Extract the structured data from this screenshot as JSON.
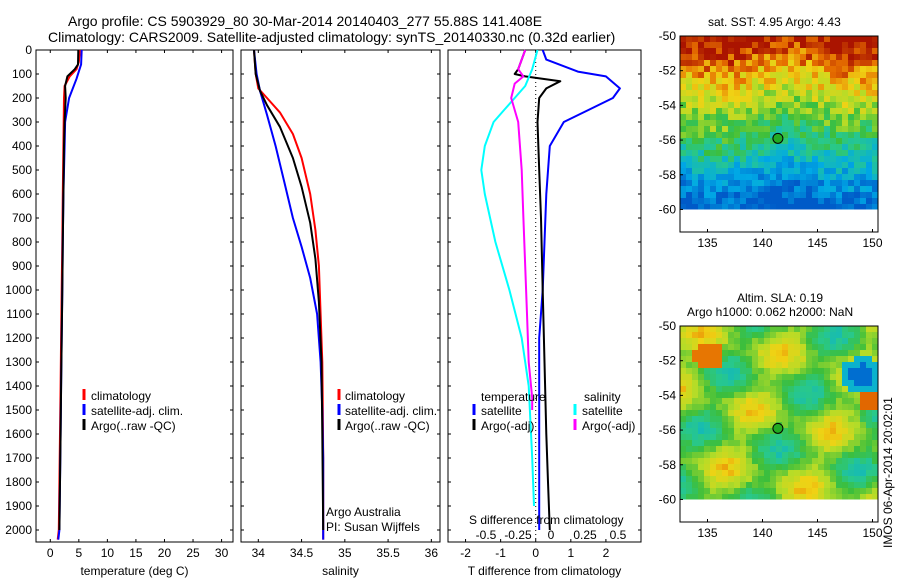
{
  "header": {
    "line1": "Argo profile: CS 5903929_80 30-Mar-2014 20140403_277 55.88S 141.408E",
    "line2": "Climatology: CARS2009. Satellite-adjusted climatology: synTS_20140330.nc (0.32d earlier)"
  },
  "colors": {
    "climatology": "#ff0000",
    "satellite": "#0000ff",
    "argo": "#000000",
    "cyan": "#00ffff",
    "magenta": "#ff00ff"
  },
  "chart_data": [
    {
      "type": "line",
      "id": "temperature",
      "xlabel": "temperature (deg C)",
      "ylabel": "",
      "xlim": [
        -2.5,
        32
      ],
      "ylim": [
        0,
        2050
      ],
      "xticks": [
        0,
        5,
        10,
        15,
        20,
        25,
        30
      ],
      "yticks": [
        0,
        100,
        200,
        300,
        400,
        500,
        600,
        700,
        800,
        900,
        1000,
        1100,
        1200,
        1300,
        1400,
        1500,
        1600,
        1700,
        1800,
        1900,
        2000
      ],
      "legend": [
        "climatology",
        "satellite-adj. clim.",
        "Argo(..raw -QC)"
      ],
      "legend_position": "lower-right",
      "series": [
        {
          "name": "climatology",
          "color": "#ff0000",
          "x": [
            5.2,
            5.0,
            4.6,
            3.4,
            2.5,
            2.4,
            2.35,
            2.3,
            2.2,
            2.1,
            2.0,
            1.9,
            1.8,
            1.7,
            1.6,
            1.5,
            1.3
          ],
          "y": [
            0,
            50,
            80,
            110,
            150,
            200,
            300,
            400,
            600,
            800,
            1000,
            1200,
            1400,
            1600,
            1800,
            2000,
            2040
          ]
        },
        {
          "name": "satellite-adj. clim.",
          "color": "#0000ff",
          "x": [
            5.5,
            5.4,
            5.0,
            4.6,
            3.3,
            2.6,
            2.5,
            2.4,
            2.3,
            2.2,
            2.1,
            2.0,
            1.9,
            1.8,
            1.7,
            1.6,
            1.4
          ],
          "y": [
            0,
            60,
            90,
            120,
            200,
            300,
            400,
            500,
            600,
            800,
            1000,
            1200,
            1400,
            1600,
            1800,
            2000,
            2040
          ]
        },
        {
          "name": "Argo(..raw -QC)",
          "color": "#000000",
          "x": [
            4.9,
            4.85,
            4.3,
            3.0,
            2.6,
            2.7,
            2.5,
            2.4,
            2.3,
            2.2,
            2.1,
            2.0,
            1.9,
            1.8,
            1.7,
            1.6
          ],
          "y": [
            0,
            60,
            80,
            110,
            150,
            200,
            300,
            400,
            600,
            800,
            1000,
            1200,
            1400,
            1600,
            1800,
            2000
          ]
        }
      ]
    },
    {
      "type": "line",
      "id": "salinity",
      "xlabel": "salinity",
      "xlim": [
        33.8,
        36.1
      ],
      "ylim": [
        0,
        2050
      ],
      "xticks": [
        34,
        34.5,
        35,
        35.5,
        36
      ],
      "legend": [
        "climatology",
        "satellite-adj. clim.",
        "Argo(..raw -QC)"
      ],
      "legend_position": "lower-right",
      "annotations": [
        "Argo Australia",
        "PI: Susan Wijffels"
      ],
      "series": [
        {
          "name": "climatology",
          "color": "#ff0000",
          "x": [
            33.95,
            33.97,
            34.0,
            34.1,
            34.25,
            34.4,
            34.5,
            34.6,
            34.66,
            34.7,
            34.72,
            34.74,
            34.745,
            34.75,
            34.75,
            34.75
          ],
          "y": [
            0,
            100,
            160,
            200,
            260,
            350,
            450,
            600,
            750,
            900,
            1100,
            1300,
            1500,
            1700,
            1900,
            2040
          ]
        },
        {
          "name": "satellite-adj. clim.",
          "color": "#0000ff",
          "x": [
            33.95,
            33.98,
            34.02,
            34.1,
            34.2,
            34.3,
            34.4,
            34.5,
            34.6,
            34.68,
            34.72,
            34.74,
            34.75,
            34.75,
            34.75
          ],
          "y": [
            0,
            100,
            170,
            270,
            400,
            550,
            700,
            820,
            950,
            1100,
            1300,
            1500,
            1700,
            1900,
            2040
          ]
        },
        {
          "name": "Argo(..raw -QC)",
          "color": "#000000",
          "x": [
            33.95,
            33.97,
            34.02,
            34.1,
            34.25,
            34.4,
            34.5,
            34.6,
            34.66,
            34.7,
            34.73,
            34.74,
            34.75
          ],
          "y": [
            0,
            100,
            170,
            230,
            320,
            450,
            570,
            720,
            870,
            1050,
            1300,
            1600,
            2000
          ]
        }
      ]
    },
    {
      "type": "line",
      "id": "differences",
      "xlabel": "T difference from climatology",
      "xlabel2": "S difference from climatology",
      "xlim": [
        -2.5,
        3
      ],
      "ylim": [
        0,
        2050
      ],
      "xticks": [
        -2,
        -1,
        0,
        1,
        2
      ],
      "xticks_s": [
        "-0.5",
        "-0.25",
        "0",
        "0.25",
        "0.5"
      ],
      "legend_left_title": "temperature",
      "legend_right_title": "salinity",
      "legend": [
        "satellite",
        "Argo(-adj)",
        "satellite",
        "Argo(-adj)"
      ],
      "series": [
        {
          "name": "T satellite",
          "color": "#0000ff",
          "x": [
            0.2,
            0.3,
            1.2,
            2.0,
            2.4,
            2.2,
            1.5,
            0.8,
            0.4,
            0.3,
            0.25,
            0.2,
            0.1,
            0.1,
            0.1,
            0.1
          ],
          "y": [
            0,
            40,
            90,
            110,
            160,
            200,
            250,
            300,
            400,
            600,
            800,
            1000,
            1200,
            1400,
            1700,
            2000
          ]
        },
        {
          "name": "T Argo(-adj)",
          "color": "#000000",
          "x": [
            -0.3,
            -0.5,
            -0.6,
            -0.3,
            0.7,
            0.3,
            0.1,
            0.05,
            0.1,
            0.15,
            0.2,
            0.25,
            0.3,
            0.35,
            0.4
          ],
          "y": [
            0,
            80,
            100,
            110,
            130,
            160,
            200,
            300,
            500,
            700,
            1000,
            1300,
            1600,
            1800,
            2000
          ]
        },
        {
          "name": "S satellite",
          "color": "#00ffff",
          "x": [
            0.05,
            -0.1,
            -0.3,
            -0.6,
            -0.9,
            -1.2,
            -1.45,
            -1.55,
            -1.45,
            -1.15,
            -0.75,
            -0.4,
            -0.2,
            -0.1,
            -0.05
          ],
          "y": [
            0,
            80,
            150,
            200,
            250,
            300,
            400,
            500,
            600,
            800,
            1000,
            1200,
            1400,
            1700,
            1900
          ]
        },
        {
          "name": "S Argo(-adj)",
          "color": "#ff00ff",
          "x": [
            -0.3,
            -0.5,
            -0.35,
            -0.6,
            -0.7,
            -0.5,
            -0.4,
            -0.35,
            -0.3,
            -0.25,
            -0.2,
            -0.1,
            -0.1
          ],
          "y": [
            0,
            80,
            110,
            140,
            200,
            300,
            500,
            700,
            900,
            1100,
            1300,
            1450,
            1500
          ]
        }
      ]
    },
    {
      "type": "heatmap",
      "id": "sst-map",
      "title": "sat. SST: 4.95 Argo: 4.43",
      "xlim": [
        132.5,
        150.5
      ],
      "ylim": [
        -61.3,
        -50
      ],
      "xticks": [
        135,
        140,
        145,
        150
      ],
      "yticks": [
        -50,
        -52,
        -54,
        -56,
        -58,
        -60
      ],
      "data_ylim": [
        -60,
        -50
      ],
      "argo_marker": {
        "lon": 141.4,
        "lat": -55.9
      }
    },
    {
      "type": "heatmap",
      "id": "sla-map",
      "title": "Altim. SLA: 0.19",
      "subtitle": "Argo h1000: 0.062 h2000: NaN",
      "xlim": [
        132.5,
        150.5
      ],
      "ylim": [
        -61.3,
        -50
      ],
      "xticks": [
        135,
        140,
        145,
        150
      ],
      "yticks": [
        -50,
        -52,
        -54,
        -56,
        -58,
        -60
      ],
      "data_ylim": [
        -60,
        -50
      ],
      "argo_marker": {
        "lon": 141.4,
        "lat": -55.9
      }
    }
  ],
  "credit": "IMOS 06-Apr-2014 20:02:01"
}
